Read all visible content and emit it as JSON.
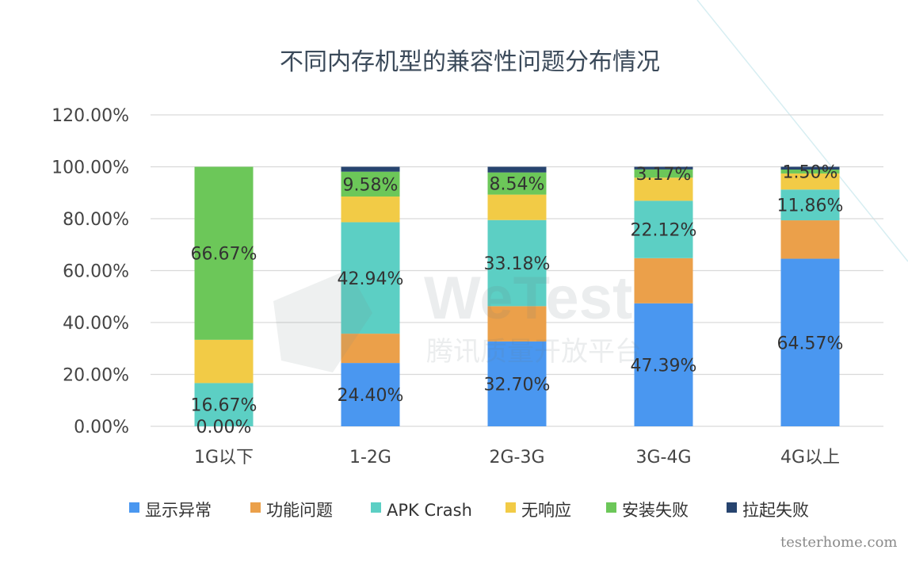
{
  "chart_data": {
    "type": "bar",
    "stacked": true,
    "title": "不同内存机型的兼容性问题分布情况",
    "categories": [
      "1G以下",
      "1-2G",
      "2G-3G",
      "3G-4G",
      "4G以上"
    ],
    "ylim": [
      0,
      120
    ],
    "yticks": [
      "0.00%",
      "20.00%",
      "40.00%",
      "60.00%",
      "80.00%",
      "100.00%",
      "120.00%"
    ],
    "grid": true,
    "legend_position": "bottom",
    "series": [
      {
        "name": "显示异常",
        "color": "#4a97f0",
        "values": [
          0.0,
          24.4,
          32.7,
          47.39,
          64.57
        ]
      },
      {
        "name": "功能问题",
        "color": "#eba04a",
        "values": [
          0.0,
          11.3,
          13.6,
          17.4,
          14.8
        ]
      },
      {
        "name": "APK Crash",
        "color": "#5ccfc4",
        "values": [
          16.67,
          42.94,
          33.18,
          22.12,
          11.86
        ]
      },
      {
        "name": "无响应",
        "color": "#f2cb46",
        "values": [
          16.66,
          9.9,
          9.8,
          8.9,
          6.2
        ]
      },
      {
        "name": "安装失败",
        "color": "#6cc759",
        "values": [
          66.67,
          9.58,
          8.54,
          3.17,
          1.5
        ]
      },
      {
        "name": "拉起失败",
        "color": "#27446f",
        "values": [
          0.0,
          1.88,
          2.18,
          1.02,
          1.07
        ]
      }
    ],
    "data_labels": [
      {
        "category": "1G以下",
        "series": "安装失败",
        "text": "66.67%"
      },
      {
        "category": "1G以下",
        "series": "APK Crash",
        "text": "16.67%"
      },
      {
        "category": "1G以下",
        "series": "显示异常",
        "text": "0.00%"
      },
      {
        "category": "1-2G",
        "series": "安装失败",
        "text": "9.58%"
      },
      {
        "category": "1-2G",
        "series": "APK Crash",
        "text": "42.94%"
      },
      {
        "category": "1-2G",
        "series": "显示异常",
        "text": "24.40%"
      },
      {
        "category": "2G-3G",
        "series": "安装失败",
        "text": "8.54%"
      },
      {
        "category": "2G-3G",
        "series": "APK Crash",
        "text": "33.18%"
      },
      {
        "category": "2G-3G",
        "series": "显示异常",
        "text": "32.70%"
      },
      {
        "category": "3G-4G",
        "series": "安装失败",
        "text": "3.17%"
      },
      {
        "category": "3G-4G",
        "series": "APK Crash",
        "text": "22.12%"
      },
      {
        "category": "3G-4G",
        "series": "显示异常",
        "text": "47.39%"
      },
      {
        "category": "4G以上",
        "series": "安装失败",
        "text": "1.50%"
      },
      {
        "category": "4G以上",
        "series": "APK Crash",
        "text": "11.86%"
      },
      {
        "category": "4G以上",
        "series": "显示异常",
        "text": "64.57%"
      }
    ]
  },
  "watermark": {
    "logo_text": "WeTest",
    "subtitle": "腾讯质量开放平台",
    "corner_text": "testerhome.com"
  }
}
